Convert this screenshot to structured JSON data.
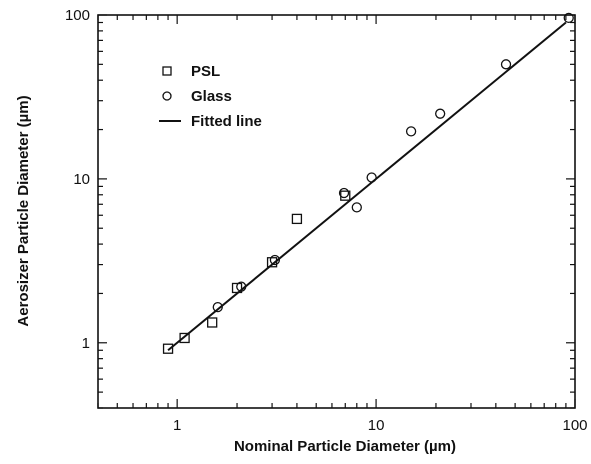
{
  "chart_data": {
    "type": "scatter",
    "xlabel": "Nominal Particle Diameter (µm)",
    "ylabel": "Aerosizer Particle Diameter (µm)",
    "x_scale": "log",
    "y_scale": "log",
    "xlim": [
      0.4,
      100
    ],
    "ylim": [
      0.4,
      100
    ],
    "x_ticks": [
      {
        "value": 1,
        "label": "1"
      },
      {
        "value": 10,
        "label": "10"
      },
      {
        "value": 100,
        "label": "100"
      }
    ],
    "y_ticks": [
      {
        "value": 1,
        "label": "1"
      },
      {
        "value": 10,
        "label": "10"
      },
      {
        "value": 100,
        "label": "100"
      }
    ],
    "grid": false,
    "legend_position": "top-left",
    "series": [
      {
        "name": "PSL",
        "marker": "square",
        "points": [
          {
            "x": 0.9,
            "y": 0.92
          },
          {
            "x": 1.09,
            "y": 1.07
          },
          {
            "x": 1.5,
            "y": 1.33
          },
          {
            "x": 2.0,
            "y": 2.16
          },
          {
            "x": 3.0,
            "y": 3.1
          },
          {
            "x": 4.0,
            "y": 5.7
          },
          {
            "x": 7.0,
            "y": 7.9
          }
        ]
      },
      {
        "name": "Glass",
        "marker": "circle",
        "points": [
          {
            "x": 1.6,
            "y": 1.65
          },
          {
            "x": 2.1,
            "y": 2.2
          },
          {
            "x": 3.1,
            "y": 3.2
          },
          {
            "x": 6.9,
            "y": 8.2
          },
          {
            "x": 8.0,
            "y": 6.7
          },
          {
            "x": 9.5,
            "y": 10.2
          },
          {
            "x": 15.0,
            "y": 19.5
          },
          {
            "x": 21.0,
            "y": 25.0
          },
          {
            "x": 45.0,
            "y": 50.0
          },
          {
            "x": 93.0,
            "y": 96.0
          }
        ]
      },
      {
        "name": "Fitted line",
        "marker": "line",
        "points": [
          {
            "x": 0.9,
            "y": 0.9
          },
          {
            "x": 90.0,
            "y": 90.0
          }
        ]
      }
    ]
  }
}
